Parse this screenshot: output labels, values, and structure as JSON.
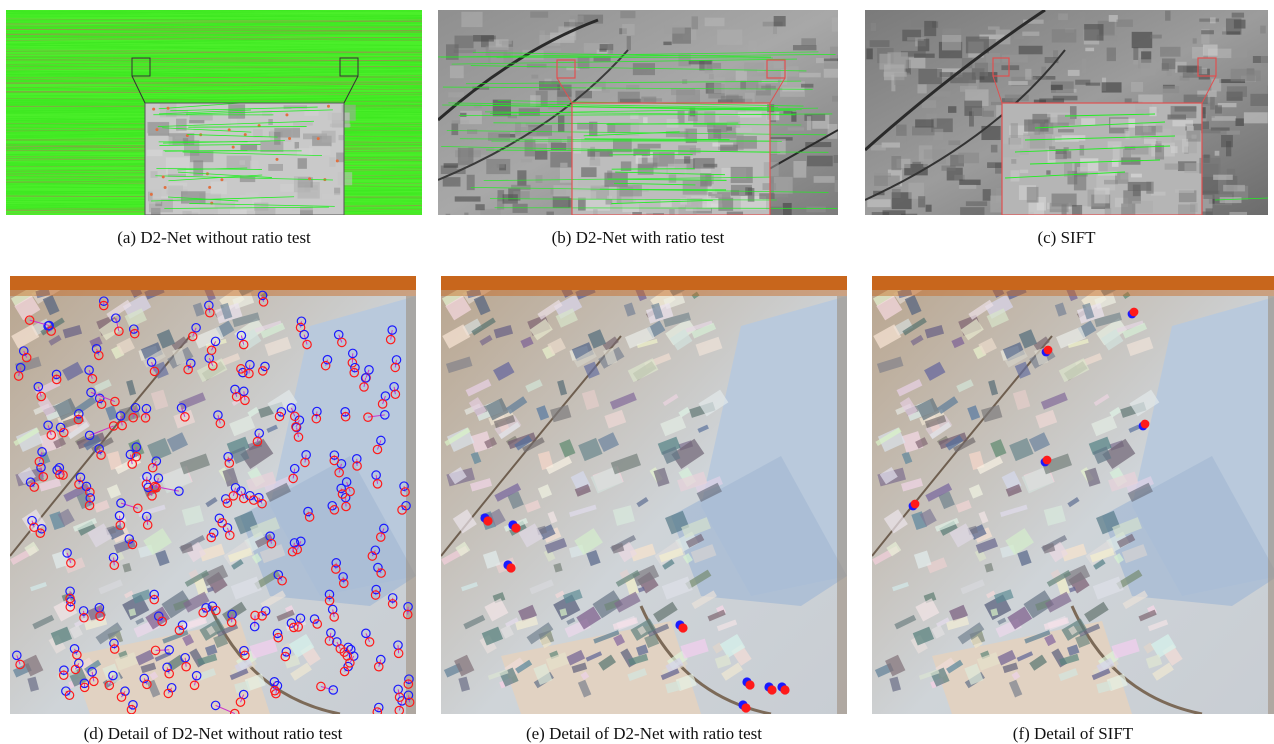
{
  "figure": {
    "captions": {
      "a": "(a)  D2-Net without ratio test",
      "b": "(b)  D2-Net with ratio test",
      "c": "(c)  SIFT",
      "d": "(d)  Detail of D2-Net without ratio test",
      "e": "(e)  Detail of D2-Net with ratio test",
      "f": "(f)  Detail of SIFT"
    }
  },
  "colors": {
    "match_line": "#22ee22",
    "inset_border": "#e05050",
    "keypoint_red": "#ff1a1a",
    "keypoint_blue": "#1a1aff",
    "match_link": "#cc33cc",
    "detail_orange_band": "#c8661c"
  }
}
